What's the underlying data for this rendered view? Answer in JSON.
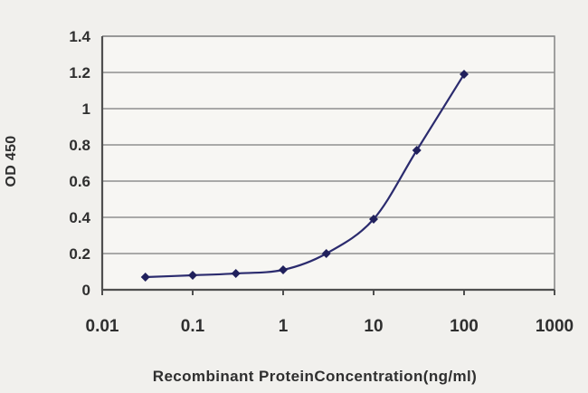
{
  "chart_data": {
    "type": "line",
    "title": "",
    "xlabel": "Recombinant ProteinConcentration(ng/ml)",
    "ylabel": "OD 450",
    "x_scale": "log",
    "xlim": [
      0.01,
      1000
    ],
    "ylim": [
      0,
      1.4
    ],
    "x_ticks": [
      0.01,
      0.1,
      1,
      10,
      100,
      1000
    ],
    "x_tick_labels": [
      "0.01",
      "0.1",
      "1",
      "10",
      "100",
      "1000"
    ],
    "y_ticks": [
      0,
      0.2,
      0.4,
      0.6,
      0.8,
      1,
      1.2,
      1.4
    ],
    "y_tick_labels": [
      "0",
      "0.2",
      "0.4",
      "0.6",
      "0.8",
      "1",
      "1.2",
      "1.4"
    ],
    "grid": "horizontal",
    "legend": "none",
    "series": [
      {
        "name": "OD 450",
        "marker": "diamond",
        "line_style": "smooth",
        "points": [
          {
            "x": 0.03,
            "y": 0.07
          },
          {
            "x": 0.1,
            "y": 0.08
          },
          {
            "x": 0.3,
            "y": 0.09
          },
          {
            "x": 1,
            "y": 0.11
          },
          {
            "x": 3,
            "y": 0.2
          },
          {
            "x": 10,
            "y": 0.39
          },
          {
            "x": 30,
            "y": 0.77
          },
          {
            "x": 100,
            "y": 1.19
          }
        ]
      }
    ]
  },
  "style": {
    "line_color": "#2b2b6e",
    "marker_color": "#20205c",
    "grid_color": "#8f8f8f",
    "frame_color": "#8a8a8a",
    "axis_color": "#4f4f4f",
    "text_color": "#2f2f2f",
    "bg_outer": "#f1f0ed",
    "bg_inner": "#f7f6f3"
  }
}
